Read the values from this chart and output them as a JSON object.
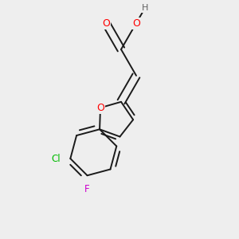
{
  "bg_color": "#eeeeee",
  "bond_color": "#1a1a1a",
  "O_color": "#ff0000",
  "H_color": "#606060",
  "Cl_color": "#00bb00",
  "F_color": "#cc00cc",
  "bond_width": 1.4,
  "figsize": [
    3.0,
    3.0
  ],
  "dpi": 100,
  "xlim": [
    0,
    3.0
  ],
  "ylim": [
    0,
    3.0
  ]
}
